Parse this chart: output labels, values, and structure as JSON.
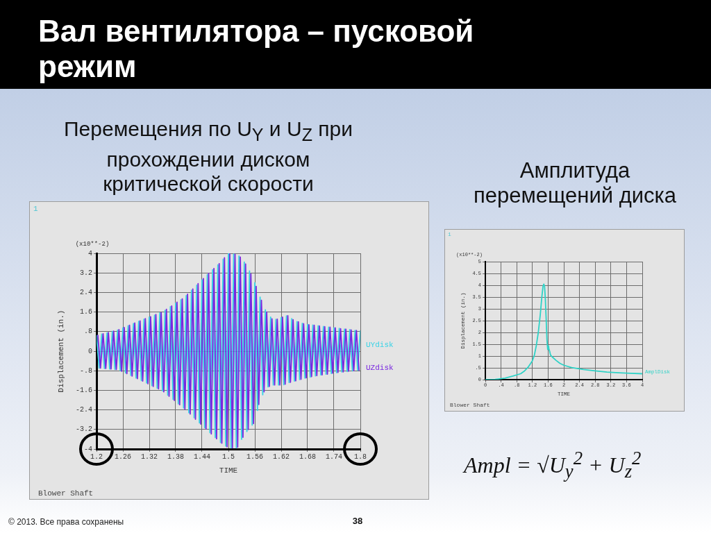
{
  "chart_data": [
    {
      "type": "line",
      "title": "Вал вентилятора – пусковой режим",
      "subtitle": "Перемещения по U$_{Y}$ и U$_{Z}$ при прохождении диском критической скорости",
      "xlabel": "TIME",
      "ylabel": "Displacement (in.)",
      "annotations": [
        "1",
        "(x10**-2)",
        "Blower Shaft",
        "© 2013. Все права сохранены",
        "38"
      ],
      "xlim": [
        1.2,
        1.8
      ],
      "xticks": [
        1.2,
        1.26,
        1.32,
        1.38,
        1.44,
        1.5,
        1.56,
        1.62,
        1.68,
        1.74,
        1.8
      ],
      "ylim": [
        -4,
        4
      ],
      "yticks": [
        -4,
        -3.2,
        -2.4,
        -1.6,
        {
          "value": -0.8,
          "label": "-.8"
        },
        0,
        {
          "value": 0.8,
          "label": ".8"
        },
        1.6,
        2.4,
        3.2,
        4
      ],
      "grid": true,
      "legend": "right",
      "series": [
        {
          "name": "UYdisk",
          "color": "#38d3e6",
          "x": [
            1.2,
            1.206,
            1.212,
            1.218,
            1.224,
            1.23,
            1.236,
            1.242,
            1.248,
            1.254,
            1.26,
            1.266,
            1.272,
            1.278,
            1.284,
            1.29,
            1.296,
            1.302,
            1.308,
            1.314,
            1.32,
            1.326,
            1.332,
            1.338,
            1.344,
            1.35,
            1.356,
            1.362,
            1.368,
            1.374,
            1.38,
            1.386,
            1.392,
            1.398,
            1.404,
            1.41,
            1.416,
            1.422,
            1.428,
            1.434,
            1.44,
            1.446,
            1.452,
            1.458,
            1.464,
            1.47,
            1.476,
            1.482,
            1.488,
            1.494,
            1.5,
            1.506,
            1.512,
            1.518,
            1.524,
            1.53,
            1.536,
            1.542,
            1.548,
            1.554,
            1.56,
            1.566,
            1.572,
            1.578,
            1.584,
            1.59,
            1.596,
            1.602,
            1.608,
            1.614,
            1.62,
            1.626,
            1.632,
            1.638,
            1.644,
            1.65,
            1.656,
            1.662,
            1.668,
            1.674,
            1.68,
            1.686,
            1.692,
            1.698,
            1.704,
            1.71,
            1.716,
            1.722,
            1.728,
            1.734,
            1.74,
            1.746,
            1.752,
            1.758,
            1.764,
            1.77,
            1.776,
            1.782,
            1.788,
            1.794,
            1.8
          ],
          "values": [
            0.64,
            -0.69,
            0.7,
            -0.71,
            0.75,
            -0.73,
            0.81,
            -0.75,
            0.86,
            -0.79,
            0.95,
            -0.89,
            1.04,
            -0.99,
            1.13,
            -1.1,
            1.22,
            -1.2,
            1.31,
            -1.3,
            1.39,
            -1.41,
            1.47,
            -1.51,
            1.56,
            -1.62,
            1.67,
            -1.8,
            1.82,
            -1.97,
            1.96,
            -2.15,
            2.1,
            -2.32,
            2.27,
            -2.52,
            2.49,
            -2.72,
            2.7,
            -2.93,
            2.92,
            -3.13,
            3.13,
            -3.33,
            3.33,
            -3.53,
            3.53,
            -3.73,
            3.76,
            -3.88,
            4,
            -3.95,
            3.97,
            -3.95,
            3.89,
            -3.6,
            3.64,
            -3.28,
            3.28,
            -3.02,
            2.8,
            -2.42,
            2.21,
            -1.78,
            1.69,
            -1.46,
            1.39,
            -1.38,
            1.3,
            -1.38,
            1.37,
            -1.37,
            1.44,
            -1.28,
            1.33,
            -1.22,
            1.21,
            -1.16,
            1.14,
            -1.1,
            1.09,
            -1.06,
            1.07,
            -1.01,
            1.04,
            -0.97,
            1.01,
            -0.94,
            0.98,
            -0.91,
            0.95,
            -0.88,
            0.93,
            -0.85,
            0.9,
            -0.83,
            0.88,
            -0.81,
            0.85,
            -0.78,
            0.83
          ]
        },
        {
          "name": "UZdisk",
          "color": "#7a28e0",
          "x": [
            1.203,
            1.209,
            1.215,
            1.221,
            1.227,
            1.233,
            1.239,
            1.245,
            1.251,
            1.257,
            1.263,
            1.269,
            1.275,
            1.281,
            1.287,
            1.293,
            1.299,
            1.305,
            1.311,
            1.317,
            1.323,
            1.329,
            1.335,
            1.341,
            1.347,
            1.353,
            1.359,
            1.365,
            1.371,
            1.377,
            1.383,
            1.389,
            1.395,
            1.401,
            1.407,
            1.413,
            1.419,
            1.425,
            1.431,
            1.437,
            1.443,
            1.449,
            1.455,
            1.461,
            1.467,
            1.473,
            1.479,
            1.485,
            1.491,
            1.497,
            1.503,
            1.509,
            1.515,
            1.521,
            1.527,
            1.533,
            1.539,
            1.545,
            1.551,
            1.557,
            1.563,
            1.569,
            1.575,
            1.581,
            1.587,
            1.593,
            1.599,
            1.605,
            1.611,
            1.617,
            1.623,
            1.629,
            1.635,
            1.641,
            1.647,
            1.653,
            1.659,
            1.665,
            1.671,
            1.677,
            1.683,
            1.689,
            1.695,
            1.701,
            1.707,
            1.713,
            1.719,
            1.725,
            1.731,
            1.737,
            1.743,
            1.749,
            1.755,
            1.761,
            1.767,
            1.773,
            1.779,
            1.785,
            1.791,
            1.797
          ],
          "values": [
            0.65,
            -0.69,
            0.71,
            -0.71,
            0.76,
            -0.73,
            0.82,
            -0.75,
            0.88,
            -0.82,
            0.97,
            -0.92,
            1.06,
            -1.02,
            1.15,
            -1.12,
            1.24,
            -1.22,
            1.33,
            -1.33,
            1.41,
            -1.44,
            1.5,
            -1.54,
            1.58,
            -1.66,
            1.71,
            -1.84,
            1.85,
            -2.01,
            2,
            -2.19,
            2.14,
            -2.37,
            2.33,
            -2.57,
            2.54,
            -2.78,
            2.76,
            -2.98,
            2.97,
            -3.18,
            3.18,
            -3.38,
            3.38,
            -3.58,
            3.58,
            -3.76,
            3.82,
            -3.91,
            3.99,
            -3.95,
            3.96,
            -3.92,
            3.85,
            -3.52,
            3.56,
            -3.2,
            3.16,
            -2.96,
            2.65,
            -2.18,
            2.08,
            -1.66,
            1.6,
            -1.44,
            1.32,
            -1.38,
            1.31,
            -1.38,
            1.39,
            -1.35,
            1.45,
            -1.27,
            1.29,
            -1.21,
            1.2,
            -1.15,
            1.12,
            -1.09,
            1.08,
            -1.04,
            1.06,
            -1,
            1.03,
            -0.97,
            1,
            -0.94,
            0.98,
            -0.9,
            0.95,
            -0.87,
            0.92,
            -0.85,
            0.9,
            -0.82,
            0.87,
            -0.8,
            0.85,
            -0.78
          ]
        }
      ]
    },
    {
      "type": "line",
      "title": "Амплитуда перемещений диска",
      "xlabel": "TIME",
      "ylabel": "Displacement (in.)",
      "annotations": [
        "1",
        "(x10**-2)",
        "Blower Shaft",
        "Ampl = √U$_{y}$$^{2}$ + U$_{z}$$^{2}$"
      ],
      "xlim": [
        0,
        4
      ],
      "xticks": [
        0,
        {
          "value": 0.4,
          "label": ".4"
        },
        {
          "value": 0.8,
          "label": ".8"
        },
        1.2,
        1.6,
        2,
        2.4,
        2.8,
        3.2,
        3.6,
        4
      ],
      "ylim": [
        0,
        5
      ],
      "yticks": [
        0,
        {
          "value": 0.5,
          "label": ".5"
        },
        1,
        1.5,
        2,
        2.5,
        3,
        3.5,
        4,
        4.5,
        5
      ],
      "grid": true,
      "legend": "bottom right",
      "series": [
        {
          "name": "AmplDisk",
          "color": "#2fd2c6",
          "x": [
            0,
            0.25,
            0.5,
            0.7,
            0.9,
            1,
            1.1,
            1.2,
            1.25,
            1.3,
            1.35,
            1.4,
            1.44,
            1.47,
            1.49,
            1.51,
            1.53,
            1.55,
            1.57,
            1.59,
            1.6,
            1.61,
            1.62,
            1.64,
            1.66,
            1.7,
            1.8,
            1.9,
            2,
            2.2,
            2.5,
            2.8,
            3.1,
            3.4,
            3.7,
            4
          ],
          "values": [
            0,
            0.01,
            0.06,
            0.15,
            0.25,
            0.37,
            0.55,
            0.8,
            1.04,
            1.45,
            2,
            2.75,
            3.5,
            3.95,
            4.05,
            3.95,
            3.4,
            2.6,
            1.7,
            1.28,
            1.3,
            1.43,
            1.3,
            1.2,
            1.05,
            0.97,
            0.82,
            0.69,
            0.61,
            0.51,
            0.43,
            0.37,
            0.32,
            0.29,
            0.27,
            0.25
          ]
        }
      ]
    }
  ]
}
